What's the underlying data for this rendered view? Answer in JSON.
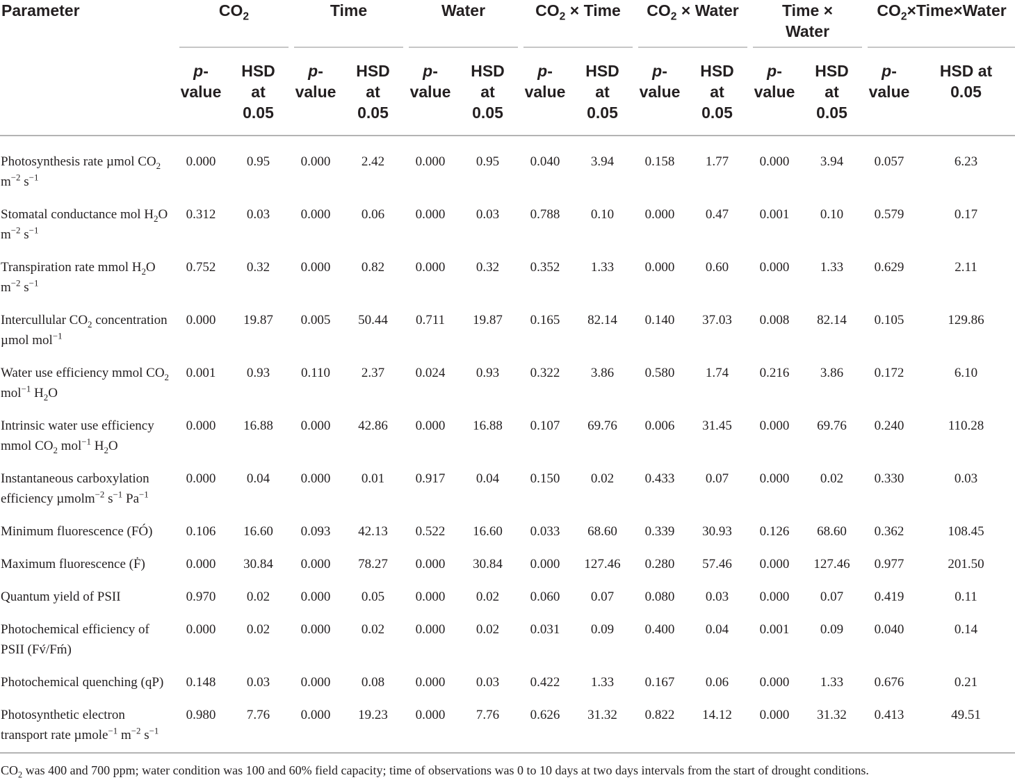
{
  "table": {
    "columns": [
      {
        "id": "co2",
        "title_html": "CO<sub>2</sub>"
      },
      {
        "id": "time",
        "title_html": "Time"
      },
      {
        "id": "water",
        "title_html": "Water"
      },
      {
        "id": "co2_time",
        "title_html": "CO<sub>2</sub> × Time"
      },
      {
        "id": "co2_water",
        "title_html": "CO<sub>2</sub> × Water"
      },
      {
        "id": "time_water",
        "title_html": "Time ×<br>Water"
      },
      {
        "id": "co2_time_water",
        "title_html": "CO<sub>2</sub>×Time×Water"
      }
    ],
    "header": {
      "parameter": "Parameter",
      "p_label_html": "<em>p</em>-<br>value",
      "hsd_label_html": "HSD<br>at<br>0.05",
      "hsd_label_last_html": "HSD at<br>0.05"
    },
    "rows": [
      {
        "param_html": "Photosynthesis rate µmol CO<sub>2</sub> m<sup>−2</sup> s<sup>−1</sup>",
        "values": [
          "0.000",
          "0.95",
          "0.000",
          "2.42",
          "0.000",
          "0.95",
          "0.040",
          "3.94",
          "0.158",
          "1.77",
          "0.000",
          "3.94",
          "0.057",
          "6.23"
        ]
      },
      {
        "param_html": "Stomatal conductance mol H<sub>2</sub>O m<sup>−2</sup> s<sup>−1</sup>",
        "values": [
          "0.312",
          "0.03",
          "0.000",
          "0.06",
          "0.000",
          "0.03",
          "0.788",
          "0.10",
          "0.000",
          "0.47",
          "0.001",
          "0.10",
          "0.579",
          "0.17"
        ]
      },
      {
        "param_html": "Transpiration rate mmol H<sub>2</sub>O m<sup>−2</sup> s<sup>−1</sup>",
        "values": [
          "0.752",
          "0.32",
          "0.000",
          "0.82",
          "0.000",
          "0.32",
          "0.352",
          "1.33",
          "0.000",
          "0.60",
          "0.000",
          "1.33",
          "0.629",
          "2.11"
        ]
      },
      {
        "param_html": "Intercullular CO<sub>2</sub> concentration µmol mol<sup>−1</sup>",
        "values": [
          "0.000",
          "19.87",
          "0.005",
          "50.44",
          "0.711",
          "19.87",
          "0.165",
          "82.14",
          "0.140",
          "37.03",
          "0.008",
          "82.14",
          "0.105",
          "129.86"
        ]
      },
      {
        "param_html": "Water use efficiency mmol CO<sub>2</sub> mol<sup>−1</sup> H<sub>2</sub>O",
        "values": [
          "0.001",
          "0.93",
          "0.110",
          "2.37",
          "0.024",
          "0.93",
          "0.322",
          "3.86",
          "0.580",
          "1.74",
          "0.216",
          "3.86",
          "0.172",
          "6.10"
        ]
      },
      {
        "param_html": "Intrinsic water use efficiency mmol CO<sub>2</sub> mol<sup>−1</sup> H<sub>2</sub>O",
        "values": [
          "0.000",
          "16.88",
          "0.000",
          "42.86",
          "0.000",
          "16.88",
          "0.107",
          "69.76",
          "0.006",
          "31.45",
          "0.000",
          "69.76",
          "0.240",
          "110.28"
        ]
      },
      {
        "param_html": "Instantaneous carboxylation efficiency µmolm<sup>−2</sup> s<sup>−1</sup> Pa<sup>−1</sup>",
        "values": [
          "0.000",
          "0.04",
          "0.000",
          "0.01",
          "0.917",
          "0.04",
          "0.150",
          "0.02",
          "0.433",
          "0.07",
          "0.000",
          "0.02",
          "0.330",
          "0.03"
        ]
      },
      {
        "param_html": "Minimum fluorescence (FÓ)",
        "values": [
          "0.106",
          "16.60",
          "0.093",
          "42.13",
          "0.522",
          "16.60",
          "0.033",
          "68.60",
          "0.339",
          "30.93",
          "0.126",
          "68.60",
          "0.362",
          "108.45"
        ]
      },
      {
        "param_html": "Maximum fluorescence (Ḟ)",
        "values": [
          "0.000",
          "30.84",
          "0.000",
          "78.27",
          "0.000",
          "30.84",
          "0.000",
          "127.46",
          "0.280",
          "57.46",
          "0.000",
          "127.46",
          "0.977",
          "201.50"
        ]
      },
      {
        "param_html": "Quantum yield of PSII",
        "values": [
          "0.970",
          "0.02",
          "0.000",
          "0.05",
          "0.000",
          "0.02",
          "0.060",
          "0.07",
          "0.080",
          "0.03",
          "0.000",
          "0.07",
          "0.419",
          "0.11"
        ]
      },
      {
        "param_html": "Photochemical efficiency of PSII (Fv́/Fḿ)",
        "values": [
          "0.000",
          "0.02",
          "0.000",
          "0.02",
          "0.000",
          "0.02",
          "0.031",
          "0.09",
          "0.400",
          "0.04",
          "0.001",
          "0.09",
          "0.040",
          "0.14"
        ]
      },
      {
        "param_html": "Photochemical quenching (qP)",
        "values": [
          "0.148",
          "0.03",
          "0.000",
          "0.08",
          "0.000",
          "0.03",
          "0.422",
          "1.33",
          "0.167",
          "0.06",
          "0.000",
          "1.33",
          "0.676",
          "0.21"
        ]
      },
      {
        "param_html": "Photosynthetic electron transport rate µmole<sup>−1</sup> m<sup>−2</sup> s<sup>−1</sup>",
        "values": [
          "0.980",
          "7.76",
          "0.000",
          "19.23",
          "0.000",
          "7.76",
          "0.626",
          "31.32",
          "0.822",
          "14.12",
          "0.000",
          "31.32",
          "0.413",
          "49.51"
        ]
      }
    ],
    "footnote_html": "CO<sub>2</sub> was 400 and 700 ppm; water condition was 100 and 60% field capacity; time of observations was 0 to 10 days at two days intervals from the start of drought conditions."
  }
}
